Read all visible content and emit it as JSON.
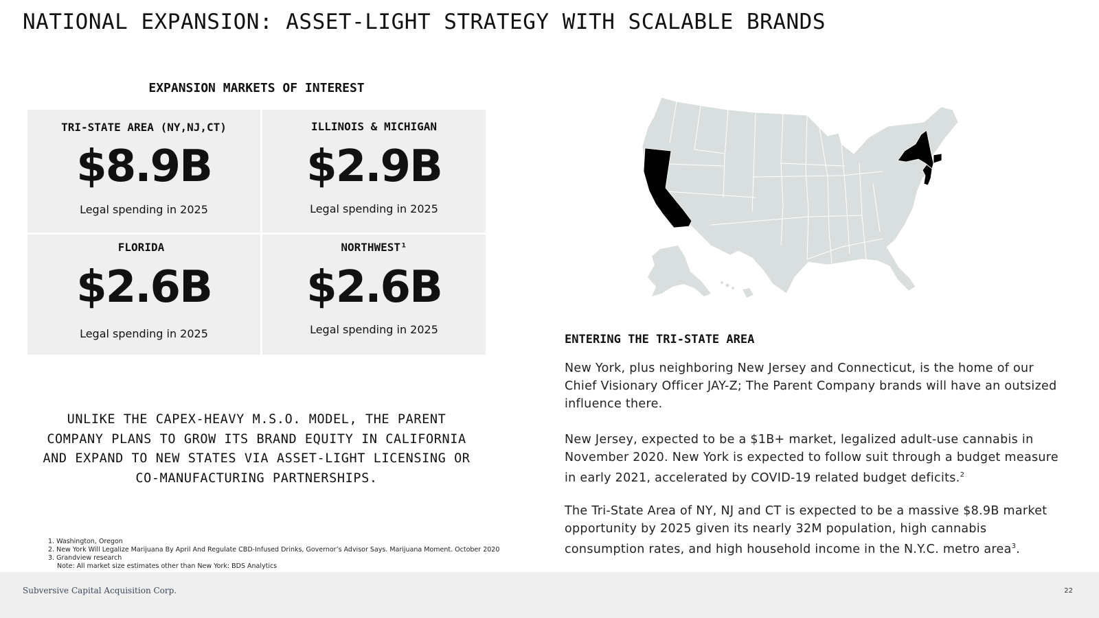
{
  "title": "NATIONAL EXPANSION: ASSET-LIGHT STRATEGY WITH SCALABLE BRANDS",
  "markets": {
    "heading": "EXPANSION MARKETS OF INTEREST",
    "items": [
      {
        "label": "TRI-STATE AREA (NY,NJ,CT)",
        "value": "$8.9B",
        "caption": "Legal spending in 2025"
      },
      {
        "label": "ILLINOIS & MICHIGAN",
        "value": "$2.9B",
        "caption": "Legal spending in 2025"
      },
      {
        "label": "FLORIDA",
        "value": "$2.6B",
        "caption": "Legal spending in 2025"
      },
      {
        "label": "NORTHWEST¹",
        "value": "$2.6B",
        "caption": "Legal spending in 2025"
      }
    ]
  },
  "tagline": "UNLIKE THE CAPEX-HEAVY M.S.O. MODEL, THE PARENT COMPANY PLANS TO GROW ITS BRAND EQUITY IN CALIFORNIA AND EXPAND TO NEW STATES VIA ASSET-LIGHT LICENSING OR CO-MANUFACTURING PARTNERSHIPS.",
  "footnotes": [
    "1. Washington, Oregon",
    "2. New York Will Legalize Marijuana By April And Regulate CBD-Infused Drinks, Governor’s Advisor Says. Marijuana Moment. October 2020",
    "3. Grandview research",
    "Note: All market size estimates other than New York: BDS Analytics"
  ],
  "map": {
    "highlighted_states": [
      "California",
      "New York",
      "New Jersey",
      "Connecticut"
    ],
    "highlight_color": "#000000",
    "base_color": "#d9dedf"
  },
  "tri_state": {
    "heading": "ENTERING THE TRI-STATE AREA",
    "p1": "New York, plus neighboring New Jersey and Connecticut, is the home of our Chief Visionary Officer JAY-Z; The Parent Company brands will have an outsized influence there.",
    "p2": "New Jersey, expected to be a $1B+ market, legalized adult-use cannabis in November 2020. New York is expected to follow suit through a budget measure in early 2021, accelerated by COVID-19 related budget deficits.",
    "p2_ref": "2",
    "p3": "The Tri-State Area of NY, NJ and CT is expected to be a massive $8.9B market opportunity by 2025 given its nearly 32M population, high cannabis consumption rates, and high household income in the N.Y.C. metro area",
    "p3_ref": "3",
    "p3_end": "."
  },
  "footer": {
    "company": "Subversive Capital Acquisition Corp.",
    "page": "22"
  }
}
